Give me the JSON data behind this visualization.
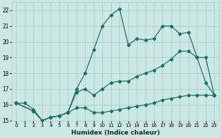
{
  "xlabel": "Humidex (Indice chaleur)",
  "bg_color": "#cce8e5",
  "grid_color": "#a0c8c5",
  "line_color": "#1a7068",
  "xlim": [
    -0.5,
    23.5
  ],
  "ylim": [
    15,
    22.5
  ],
  "xticks": [
    0,
    1,
    2,
    3,
    4,
    5,
    6,
    7,
    8,
    9,
    10,
    11,
    12,
    13,
    14,
    15,
    16,
    17,
    18,
    19,
    20,
    21,
    22,
    23
  ],
  "yticks": [
    15,
    16,
    17,
    18,
    19,
    20,
    21,
    22
  ],
  "curve1_x": [
    0,
    1,
    2,
    3,
    4,
    5,
    6,
    7,
    8,
    9,
    10,
    11,
    12,
    13,
    14,
    15,
    16,
    17,
    18,
    19,
    20,
    21,
    22,
    23
  ],
  "curve1_y": [
    16.1,
    16.1,
    15.7,
    15.0,
    15.2,
    15.3,
    15.5,
    17.0,
    18.0,
    19.5,
    21.0,
    21.7,
    22.1,
    19.8,
    20.2,
    20.1,
    20.2,
    21.0,
    21.0,
    20.5,
    20.6,
    19.0,
    17.4,
    16.6
  ],
  "curve2_x": [
    0,
    2,
    3,
    4,
    5,
    6,
    7,
    8,
    9,
    10,
    11,
    12,
    13,
    14,
    15,
    16,
    17,
    18,
    19,
    20,
    21,
    22,
    23
  ],
  "curve2_y": [
    16.1,
    15.6,
    15.0,
    15.2,
    15.3,
    15.5,
    16.8,
    17.0,
    16.6,
    17.0,
    17.4,
    17.5,
    17.5,
    17.8,
    18.0,
    18.2,
    18.5,
    18.9,
    19.4,
    19.4,
    19.0,
    19.0,
    16.6
  ],
  "curve3_x": [
    0,
    2,
    3,
    4,
    5,
    6,
    7,
    8,
    9,
    10,
    11,
    12,
    13,
    14,
    15,
    16,
    17,
    18,
    19,
    20,
    21,
    22,
    23
  ],
  "curve3_y": [
    16.1,
    15.6,
    15.0,
    15.2,
    15.3,
    15.5,
    15.8,
    15.8,
    15.5,
    15.5,
    15.6,
    15.7,
    15.8,
    15.9,
    16.0,
    16.1,
    16.3,
    16.4,
    16.5,
    16.6,
    16.6,
    16.6,
    16.6
  ]
}
